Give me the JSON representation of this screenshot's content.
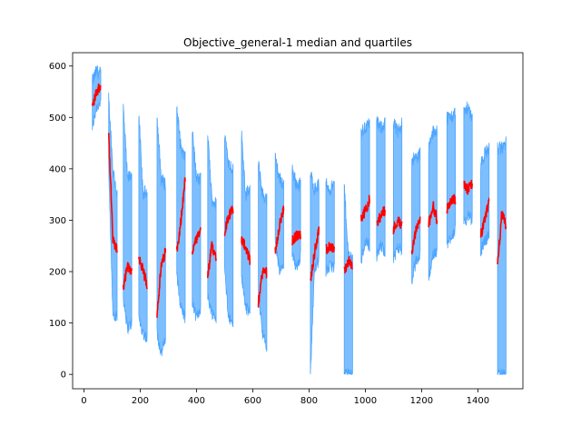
{
  "chart_data": {
    "type": "area",
    "title": "Objective_general-1 median and quartiles",
    "xlabel": "",
    "ylabel": "",
    "xlim": [
      -40,
      1560
    ],
    "ylim": [
      -28,
      626
    ],
    "x_ticks": [
      0,
      200,
      400,
      600,
      800,
      1000,
      1200,
      1400
    ],
    "y_ticks": [
      0,
      100,
      200,
      300,
      400,
      500,
      600
    ],
    "grid": false,
    "legend": "none",
    "series": [
      {
        "role": "quartile-band",
        "color": "#66b3ff",
        "edge_color": "#4da6ff"
      },
      {
        "role": "median",
        "color": "#ff0000"
      }
    ],
    "segments": [
      {
        "x0": 30,
        "x1": 60,
        "upper": [
          570,
          590,
          585
        ],
        "lower": [
          480,
          520,
          530
        ],
        "median": [
          520,
          550,
          565
        ]
      },
      {
        "x0": 88,
        "x1": 118,
        "upper": [
          540,
          400,
          350
        ],
        "lower": [
          400,
          120,
          110
        ],
        "median": [
          470,
          260,
          240
        ]
      },
      {
        "x0": 140,
        "x1": 170,
        "upper": [
          520,
          380,
          390
        ],
        "lower": [
          150,
          90,
          100
        ],
        "median": [
          170,
          210,
          200
        ]
      },
      {
        "x0": 195,
        "x1": 225,
        "upper": [
          510,
          350,
          360
        ],
        "lower": [
          110,
          80,
          70
        ],
        "median": [
          230,
          200,
          175
        ]
      },
      {
        "x0": 260,
        "x1": 290,
        "upper": [
          500,
          380,
          370
        ],
        "lower": [
          80,
          40,
          70
        ],
        "median": [
          120,
          210,
          240
        ]
      },
      {
        "x0": 330,
        "x1": 360,
        "upper": [
          520,
          440,
          420
        ],
        "lower": [
          190,
          130,
          110
        ],
        "median": [
          240,
          300,
          380
        ]
      },
      {
        "x0": 385,
        "x1": 415,
        "upper": [
          480,
          380,
          380
        ],
        "lower": [
          140,
          110,
          130
        ],
        "median": [
          240,
          260,
          280
        ]
      },
      {
        "x0": 440,
        "x1": 470,
        "upper": [
          470,
          340,
          330
        ],
        "lower": [
          150,
          120,
          110
        ],
        "median": [
          190,
          250,
          230
        ]
      },
      {
        "x0": 500,
        "x1": 530,
        "upper": [
          470,
          410,
          400
        ],
        "lower": [
          200,
          110,
          100
        ],
        "median": [
          280,
          310,
          320
        ]
      },
      {
        "x0": 560,
        "x1": 590,
        "upper": [
          470,
          350,
          360
        ],
        "lower": [
          190,
          130,
          120
        ],
        "median": [
          260,
          250,
          220
        ]
      },
      {
        "x0": 620,
        "x1": 650,
        "upper": [
          410,
          350,
          340
        ],
        "lower": [
          160,
          80,
          50
        ],
        "median": [
          140,
          200,
          200
        ]
      },
      {
        "x0": 680,
        "x1": 710,
        "upper": [
          420,
          380,
          370
        ],
        "lower": [
          260,
          200,
          210
        ],
        "median": [
          240,
          290,
          320
        ]
      },
      {
        "x0": 740,
        "x1": 770,
        "upper": [
          400,
          370,
          370
        ],
        "lower": [
          230,
          210,
          230
        ],
        "median": [
          260,
          270,
          270
        ]
      },
      {
        "x0": 805,
        "x1": 835,
        "upper": [
          390,
          360,
          370
        ],
        "lower": [
          0,
          210,
          220
        ],
        "median": [
          180,
          240,
          280
        ]
      },
      {
        "x0": 860,
        "x1": 890,
        "upper": [
          370,
          360,
          370
        ],
        "lower": [
          200,
          210,
          210
        ],
        "median": [
          240,
          250,
          245
        ]
      },
      {
        "x0": 925,
        "x1": 955,
        "upper": [
          370,
          230,
          230
        ],
        "lower": [
          0,
          0,
          0
        ],
        "median": [
          200,
          220,
          210
        ]
      },
      {
        "x0": 985,
        "x1": 1015,
        "upper": [
          470,
          480,
          490
        ],
        "lower": [
          220,
          260,
          250
        ],
        "median": [
          300,
          320,
          340
        ]
      },
      {
        "x0": 1040,
        "x1": 1070,
        "upper": [
          490,
          480,
          490
        ],
        "lower": [
          230,
          250,
          240
        ],
        "median": [
          290,
          310,
          320
        ]
      },
      {
        "x0": 1100,
        "x1": 1130,
        "upper": [
          490,
          470,
          490
        ],
        "lower": [
          220,
          250,
          240
        ],
        "median": [
          280,
          300,
          290
        ]
      },
      {
        "x0": 1165,
        "x1": 1195,
        "upper": [
          420,
          420,
          430
        ],
        "lower": [
          180,
          220,
          230
        ],
        "median": [
          240,
          280,
          300
        ]
      },
      {
        "x0": 1225,
        "x1": 1255,
        "upper": [
          440,
          470,
          480
        ],
        "lower": [
          190,
          230,
          240
        ],
        "median": [
          290,
          330,
          300
        ]
      },
      {
        "x0": 1290,
        "x1": 1320,
        "upper": [
          500,
          500,
          510
        ],
        "lower": [
          250,
          270,
          280
        ],
        "median": [
          320,
          340,
          340
        ]
      },
      {
        "x0": 1350,
        "x1": 1380,
        "upper": [
          510,
          520,
          500
        ],
        "lower": [
          290,
          310,
          300
        ],
        "median": [
          370,
          360,
          370
        ]
      },
      {
        "x0": 1410,
        "x1": 1440,
        "upper": [
          410,
          430,
          440
        ],
        "lower": [
          240,
          260,
          270
        ],
        "median": [
          270,
          300,
          340
        ]
      },
      {
        "x0": 1470,
        "x1": 1500,
        "upper": [
          440,
          440,
          450
        ],
        "lower": [
          0,
          0,
          0
        ],
        "median": [
          220,
          310,
          290
        ]
      }
    ]
  }
}
